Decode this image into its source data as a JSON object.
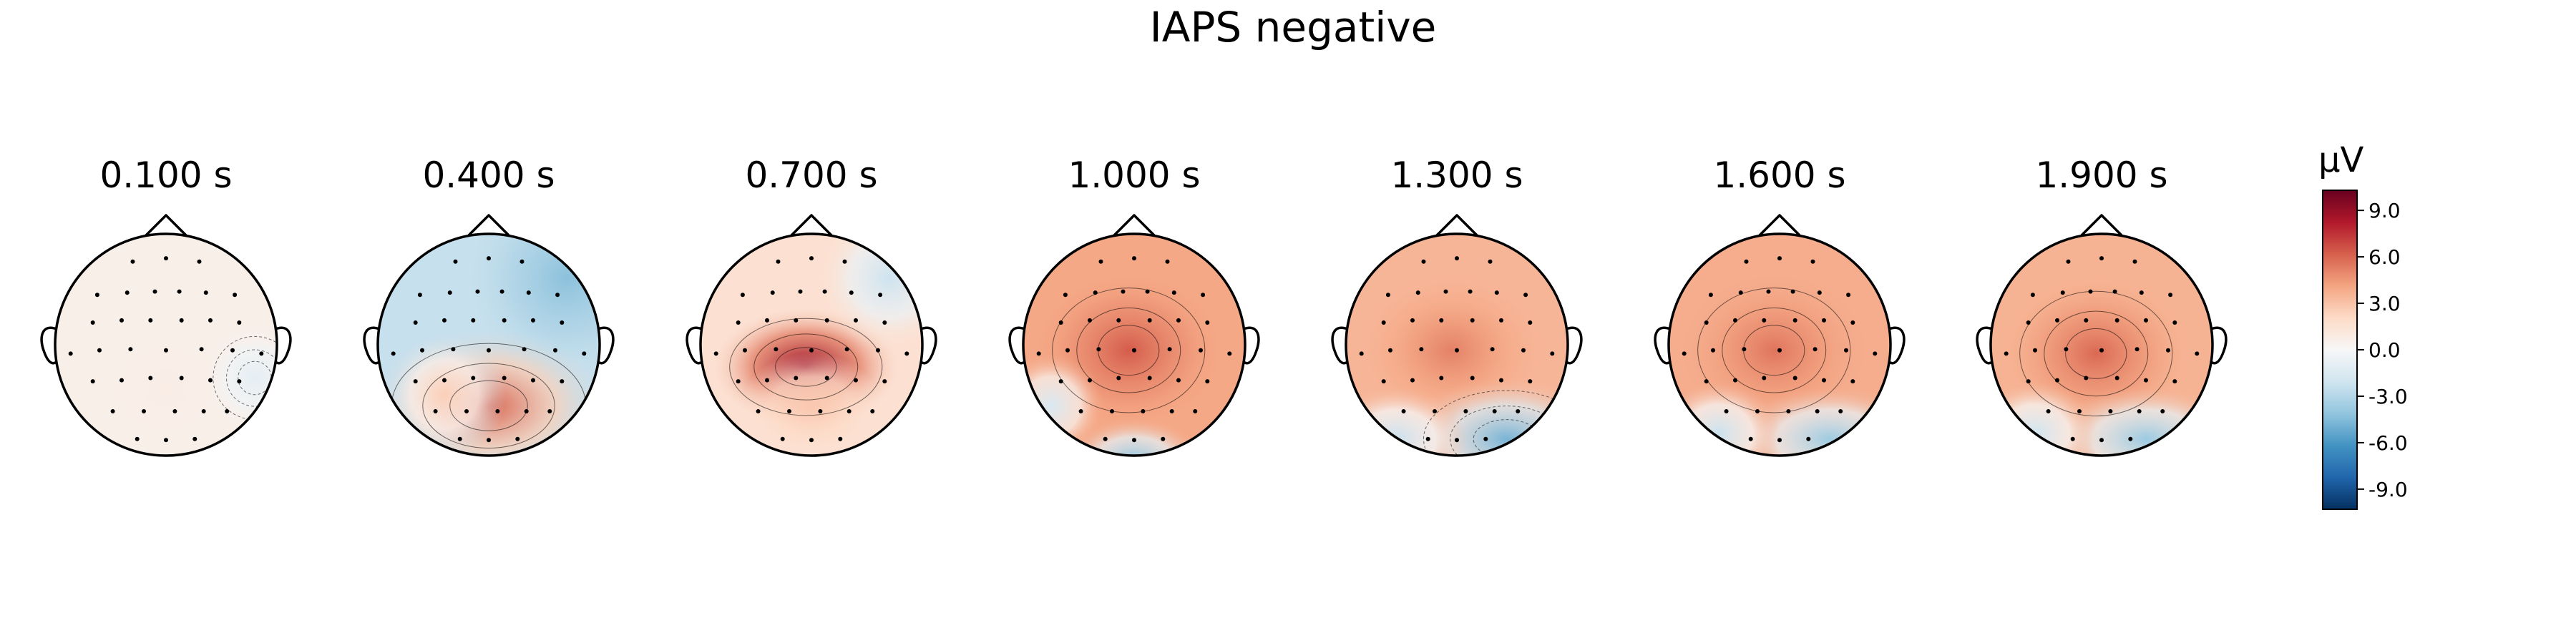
{
  "figure": {
    "title": "IAPS negative"
  },
  "chart_data": {
    "type": "heatmap",
    "title": "IAPS negative",
    "subplots": [
      {
        "label": "0.100 s",
        "time": 0.1
      },
      {
        "label": "0.400 s",
        "time": 0.4
      },
      {
        "label": "0.700 s",
        "time": 0.7
      },
      {
        "label": "1.000 s",
        "time": 1.0
      },
      {
        "label": "1.300 s",
        "time": 1.3
      },
      {
        "label": "1.600 s",
        "time": 1.6
      },
      {
        "label": "1.900 s",
        "time": 1.9
      }
    ],
    "colorbar": {
      "unit": "µV",
      "range": [
        -10.3,
        10.3
      ],
      "ticks": [
        {
          "value": 9.0,
          "label": "9.0"
        },
        {
          "value": 6.0,
          "label": "6.0"
        },
        {
          "value": 3.0,
          "label": "3.0"
        },
        {
          "value": 0.0,
          "label": "0.0"
        },
        {
          "value": -3.0,
          "label": "-3.0"
        },
        {
          "value": -6.0,
          "label": "-6.0"
        },
        {
          "value": -9.0,
          "label": "-9.0"
        }
      ],
      "colormap": "RdBu_r",
      "colors": [
        "#053061",
        "#2166ac",
        "#4393c3",
        "#92c5de",
        "#d1e5f0",
        "#f7f7f7",
        "#fddbc7",
        "#f4a582",
        "#d6604d",
        "#b2182b",
        "#67001f"
      ]
    }
  }
}
